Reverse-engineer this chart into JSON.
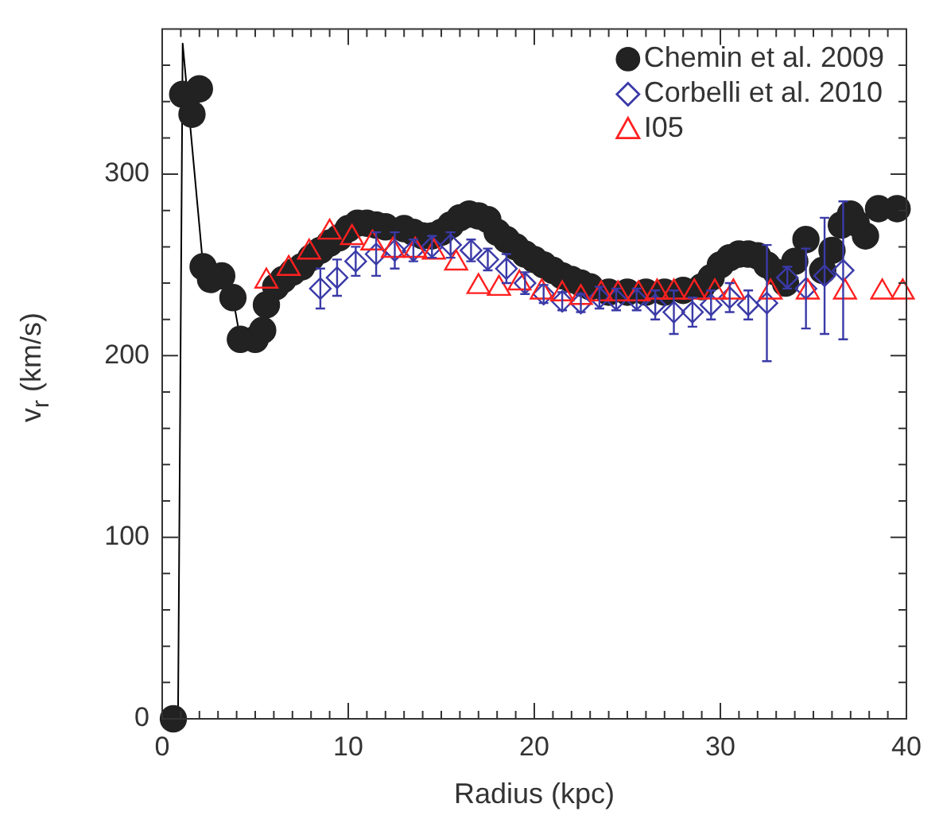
{
  "chart_data": {
    "type": "scatter",
    "xlabel": "Radius (kpc)",
    "ylabel": "v$_{r}$ (km/s)",
    "xlim": [
      0,
      40
    ],
    "ylim": [
      0,
      380
    ],
    "grid": false,
    "legend": "top right",
    "xticks": [
      0,
      {
        "value": 1,
        "label": null
      },
      {
        "value": 2,
        "label": null
      },
      {
        "value": 3,
        "label": null
      },
      {
        "value": 4,
        "label": null
      },
      {
        "value": 5,
        "label": null
      },
      {
        "value": 6,
        "label": null
      },
      {
        "value": 7,
        "label": null
      },
      {
        "value": 8,
        "label": null
      },
      {
        "value": 9,
        "label": null
      },
      10,
      {
        "value": 11,
        "label": null
      },
      {
        "value": 12,
        "label": null
      },
      {
        "value": 13,
        "label": null
      },
      {
        "value": 14,
        "label": null
      },
      {
        "value": 15,
        "label": null
      },
      {
        "value": 16,
        "label": null
      },
      {
        "value": 17,
        "label": null
      },
      {
        "value": 18,
        "label": null
      },
      {
        "value": 19,
        "label": null
      },
      20,
      {
        "value": 21,
        "label": null
      },
      {
        "value": 22,
        "label": null
      },
      {
        "value": 23,
        "label": null
      },
      {
        "value": 24,
        "label": null
      },
      {
        "value": 25,
        "label": null
      },
      {
        "value": 26,
        "label": null
      },
      {
        "value": 27,
        "label": null
      },
      {
        "value": 28,
        "label": null
      },
      {
        "value": 29,
        "label": null
      },
      30,
      {
        "value": 31,
        "label": null
      },
      {
        "value": 32,
        "label": null
      },
      {
        "value": 33,
        "label": null
      },
      {
        "value": 34,
        "label": null
      },
      {
        "value": 35,
        "label": null
      },
      {
        "value": 36,
        "label": null
      },
      {
        "value": 37,
        "label": null
      },
      {
        "value": 38,
        "label": null
      },
      {
        "value": 39,
        "label": null
      },
      40
    ],
    "yticks": [
      0,
      {
        "value": 20,
        "label": null
      },
      {
        "value": 40,
        "label": null
      },
      {
        "value": 60,
        "label": null
      },
      {
        "value": 80,
        "label": null
      },
      100,
      {
        "value": 120,
        "label": null
      },
      {
        "value": 140,
        "label": null
      },
      {
        "value": 160,
        "label": null
      },
      {
        "value": 180,
        "label": null
      },
      200,
      {
        "value": 220,
        "label": null
      },
      {
        "value": 240,
        "label": null
      },
      {
        "value": 260,
        "label": null
      },
      {
        "value": 280,
        "label": null
      },
      300,
      {
        "value": 320,
        "label": null
      },
      {
        "value": 340,
        "label": null
      },
      {
        "value": 360,
        "label": null
      }
    ],
    "series": [
      {
        "type": "line",
        "marker": "none",
        "color": "#000000",
        "x": [
          0.85,
          1.1,
          2.2,
          2.6,
          3.2,
          3.8,
          4.2,
          5.0,
          5.4,
          5.6,
          6.1
        ],
        "values": [
          0,
          372,
          249,
          242,
          244,
          232,
          209,
          209,
          214,
          228,
          238
        ]
      },
      {
        "name": "Chemin et al. 2009",
        "type": "scatter",
        "marker": "circle",
        "color": "#222222",
        "x": [
          0.6,
          1.1,
          1.6,
          2.0,
          2.2,
          2.6,
          3.2,
          3.8,
          4.2,
          5.0,
          5.4,
          5.6,
          6.1,
          6.5,
          7,
          7.5,
          8,
          8.5,
          9,
          9.5,
          10,
          10.5,
          11,
          11.5,
          12,
          13,
          13.5,
          14,
          14.5,
          15,
          15.5,
          16,
          16.5,
          17,
          17.5,
          18,
          18.5,
          19,
          19.5,
          20,
          20.5,
          21,
          21.5,
          22,
          22.5,
          23,
          24,
          25,
          26,
          27,
          28,
          29,
          29.5,
          30,
          30.5,
          31,
          31.5,
          32,
          32.5,
          33,
          33.5,
          34,
          34.6,
          35.5,
          36,
          36.5,
          37,
          37.3,
          37.8,
          38.5,
          39.5
        ],
        "values": [
          0,
          344,
          333,
          347,
          249,
          242,
          244,
          232,
          209,
          209,
          214,
          228,
          238,
          242,
          246,
          249,
          254,
          258,
          262,
          265,
          270,
          273,
          273,
          272,
          271,
          270,
          268,
          266,
          266,
          268,
          272,
          276,
          278,
          277,
          275,
          268,
          264,
          260,
          256,
          253,
          250,
          247,
          244,
          242,
          240,
          238,
          235,
          235,
          235,
          235,
          236,
          238,
          243,
          250,
          254,
          256,
          256,
          255,
          250,
          246,
          240,
          252,
          264,
          247,
          258,
          272,
          278,
          273,
          266,
          281,
          281
        ]
      },
      {
        "name": "Corbelli et al. 2010",
        "type": "scatter",
        "marker": "diamond",
        "color": "#3a3aa8",
        "x": [
          8.5,
          9.4,
          10.4,
          11.5,
          12.5,
          13.5,
          14.5,
          15.5,
          16.6,
          17.5,
          18.5,
          19.5,
          20.5,
          21.5,
          22.5,
          23.5,
          24.4,
          25.5,
          26.5,
          27.5,
          28.5,
          29.5,
          30.5,
          31.5,
          32.5,
          33.6,
          34.6,
          35.6,
          36.6
        ],
        "values": [
          237,
          243,
          252,
          256,
          258,
          258,
          260,
          261,
          258,
          253,
          248,
          240,
          234,
          230,
          229,
          232,
          231,
          231,
          228,
          224,
          224,
          228,
          232,
          228,
          229,
          243,
          237,
          244,
          247
        ],
        "errors": [
          11,
          10,
          8,
          12,
          10,
          6,
          6,
          7,
          6,
          6,
          8,
          6,
          5,
          5,
          5,
          6,
          6,
          6,
          8,
          12,
          8,
          8,
          8,
          8,
          32,
          6,
          22,
          32,
          38
        ]
      },
      {
        "name": "I05",
        "type": "scatter",
        "marker": "triangle",
        "color": "#ff2020",
        "x": [
          5.6,
          6.8,
          7.9,
          9.0,
          10.2,
          11.3,
          12.4,
          13.6,
          14.6,
          15.8,
          17.0,
          18.1,
          19.2,
          20.4,
          21.5,
          22.5,
          23.6,
          24.5,
          25.6,
          26.6,
          27.5,
          28.6,
          29.7,
          30.7,
          32.7,
          34.7,
          36.7,
          38.7,
          39.8
        ],
        "values": [
          241,
          248,
          257,
          268,
          265,
          262,
          258,
          258,
          257,
          251,
          238,
          237,
          240,
          235,
          234,
          232,
          234,
          234,
          234,
          235,
          235,
          235,
          235,
          235,
          235,
          235,
          235,
          235,
          235
        ]
      }
    ]
  }
}
